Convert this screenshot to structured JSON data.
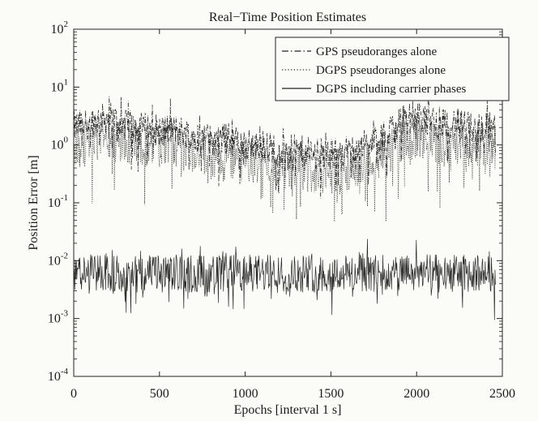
{
  "chart_data": {
    "type": "line",
    "title": "Real−Time Position Estimates",
    "xlabel": "Epochs [interval 1 s]",
    "ylabel": "Position Error [m]",
    "xlim": [
      0,
      2500
    ],
    "ylim": [
      0.0001,
      100
    ],
    "yscale": "log",
    "grid": false,
    "legend_position": "top-right",
    "x_ticks": [
      "0",
      "500",
      "1000",
      "1500",
      "2000",
      "2500"
    ],
    "y_ticks": [
      {
        "base": "10",
        "exp": "-4"
      },
      {
        "base": "10",
        "exp": "-3"
      },
      {
        "base": "10",
        "exp": "-2"
      },
      {
        "base": "10",
        "exp": "-1"
      },
      {
        "base": "10",
        "exp": "0"
      },
      {
        "base": "10",
        "exp": "1"
      },
      {
        "base": "10",
        "exp": "2"
      }
    ],
    "series": [
      {
        "name": "GPS pseudoranges alone",
        "style": "dashdot",
        "x": [
          0,
          100,
          200,
          300,
          400,
          500,
          600,
          700,
          800,
          900,
          1000,
          1100,
          1200,
          1300,
          1400,
          1500,
          1600,
          1700,
          1800,
          1900,
          2000,
          2100,
          2200,
          2300,
          2400,
          2460
        ],
        "y": [
          2.0,
          2.5,
          3.0,
          2.2,
          2.0,
          1.8,
          1.8,
          1.5,
          1.2,
          1.3,
          1.0,
          1.0,
          0.8,
          0.8,
          0.7,
          0.7,
          0.8,
          1.0,
          1.2,
          3.0,
          3.0,
          2.5,
          2.5,
          2.0,
          2.0,
          2.0
        ]
      },
      {
        "name": "DGPS pseudoranges alone",
        "style": "dotted",
        "x": [
          0,
          100,
          200,
          300,
          400,
          500,
          600,
          700,
          800,
          900,
          1000,
          1100,
          1200,
          1300,
          1400,
          1500,
          1600,
          1700,
          1800,
          1900,
          2000,
          2100,
          2200,
          2300,
          2400,
          2460
        ],
        "y": [
          1.0,
          1.2,
          1.5,
          1.2,
          1.0,
          0.9,
          0.9,
          0.8,
          0.6,
          0.6,
          0.5,
          0.5,
          0.4,
          0.4,
          0.35,
          0.35,
          0.4,
          0.5,
          0.6,
          1.2,
          1.3,
          1.1,
          1.1,
          1.0,
          1.0,
          1.0
        ]
      },
      {
        "name": "DGPS including carrier phases",
        "style": "solid",
        "x": [
          0,
          100,
          200,
          300,
          400,
          500,
          600,
          700,
          800,
          900,
          1000,
          1100,
          1200,
          1300,
          1400,
          1500,
          1600,
          1700,
          1800,
          1900,
          2000,
          2100,
          2200,
          2300,
          2400,
          2460
        ],
        "y": [
          0.006,
          0.006,
          0.006,
          0.006,
          0.006,
          0.006,
          0.006,
          0.006,
          0.006,
          0.006,
          0.006,
          0.006,
          0.006,
          0.006,
          0.006,
          0.006,
          0.006,
          0.006,
          0.006,
          0.006,
          0.006,
          0.006,
          0.006,
          0.006,
          0.006,
          0.006
        ]
      }
    ]
  }
}
